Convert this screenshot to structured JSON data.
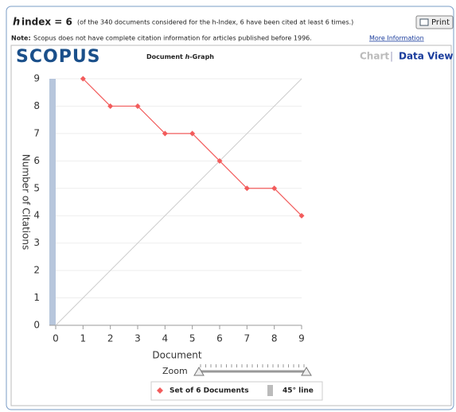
{
  "header": {
    "h": "h",
    "index": "index = 6",
    "note": "(of the 340 documents considered for the h-Index, 6 have been cited at least 6 times.)",
    "print": "Print"
  },
  "notice": {
    "label": "Note:",
    "text": "Scopus does not have complete citation information for articles published before 1996.",
    "link": "More Information"
  },
  "panel": {
    "logo": "SCOPUS",
    "graph_title_pre": "Document ",
    "graph_title_h": "h",
    "graph_title_post": "-Graph",
    "tab_chart": "Chart",
    "tab_sep": "|",
    "tab_data": "Data View",
    "zoom": "Zoom"
  },
  "chart_data": {
    "type": "line",
    "xlabel": "Document",
    "ylabel": "Number of Citations",
    "xlim": [
      0,
      9
    ],
    "ylim": [
      0,
      9
    ],
    "xticks": [
      0,
      1,
      2,
      3,
      4,
      5,
      6,
      7,
      8,
      9
    ],
    "yticks": [
      0,
      1,
      2,
      3,
      4,
      5,
      6,
      7,
      8,
      9
    ],
    "grid": true,
    "series": [
      {
        "name": "Set of 6 Documents",
        "color": "#f25c5c",
        "x": [
          1,
          2,
          3,
          4,
          5,
          6,
          7,
          8,
          9
        ],
        "values": [
          9,
          8,
          8,
          7,
          7,
          6,
          5,
          5,
          4
        ]
      },
      {
        "name": "45° line",
        "color": "#cccccc",
        "x": [
          0,
          9
        ],
        "values": [
          0,
          9
        ]
      }
    ]
  }
}
